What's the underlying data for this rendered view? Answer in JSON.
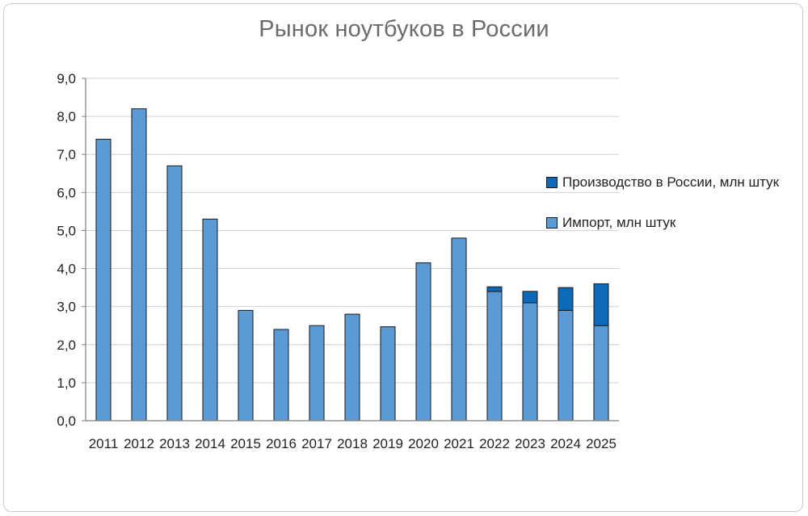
{
  "chart_data": {
    "type": "bar",
    "stacked": true,
    "title": "Рынок ноутбуков в России",
    "categories": [
      "2011",
      "2012",
      "2013",
      "2014",
      "2015",
      "2016",
      "2017",
      "2018",
      "2019",
      "2020",
      "2021",
      "2022",
      "2023",
      "2024",
      "2025"
    ],
    "series": [
      {
        "name": "Импорт, млн штук",
        "color": "#5b9bd5",
        "values": [
          7.4,
          8.2,
          6.7,
          5.3,
          2.9,
          2.4,
          2.5,
          2.8,
          2.47,
          4.15,
          4.8,
          3.4,
          3.1,
          2.9,
          2.5
        ]
      },
      {
        "name": "Производство в России, млн штук",
        "color": "#0e6ab8",
        "values": [
          0,
          0,
          0,
          0,
          0,
          0,
          0,
          0,
          0,
          0,
          0,
          0.12,
          0.3,
          0.6,
          1.1
        ]
      }
    ],
    "y_ticks": [
      "0,0",
      "1,0",
      "2,0",
      "3,0",
      "4,0",
      "5,0",
      "6,0",
      "7,0",
      "8,0",
      "9,0"
    ],
    "ylim": [
      0,
      9
    ],
    "grid": true,
    "legend_position": "right"
  }
}
